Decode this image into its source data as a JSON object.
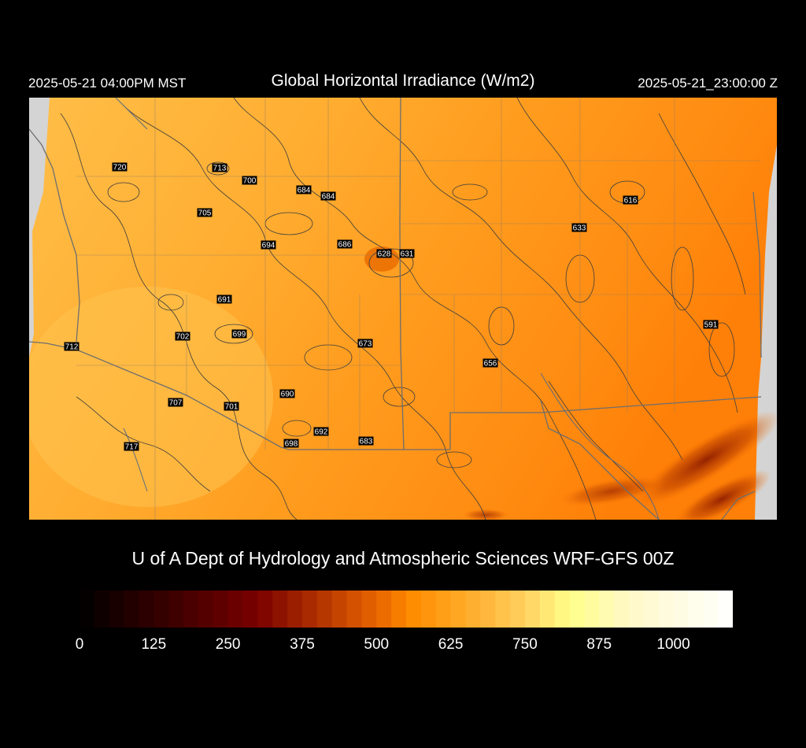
{
  "header": {
    "local_time": "2025-05-21 04:00PM MST",
    "title": "Global Horizontal Irradiance (W/m2)",
    "utc_time": "2025-05-21_23:00:00 Z"
  },
  "footer": {
    "credit": "U of A Dept of Hydrology and Atmospheric Sciences WRF-GFS 00Z"
  },
  "colorbar": {
    "min": 0,
    "max": 1100,
    "ticks": [
      "0",
      "125",
      "250",
      "375",
      "500",
      "625",
      "750",
      "875",
      "1000"
    ],
    "tick_values": [
      0,
      125,
      250,
      375,
      500,
      625,
      750,
      875,
      1000
    ],
    "stops": [
      {
        "value": 0,
        "color": "#000000"
      },
      {
        "value": 150,
        "color": "#3a0000"
      },
      {
        "value": 300,
        "color": "#7a0000"
      },
      {
        "value": 400,
        "color": "#b03000"
      },
      {
        "value": 500,
        "color": "#e86400"
      },
      {
        "value": 560,
        "color": "#ff8c00"
      },
      {
        "value": 650,
        "color": "#ffaa28"
      },
      {
        "value": 750,
        "color": "#ffd060"
      },
      {
        "value": 825,
        "color": "#ffff88"
      },
      {
        "value": 925,
        "color": "#fff8c8"
      },
      {
        "value": 1100,
        "color": "#ffffff"
      }
    ]
  },
  "colors": {
    "background": "#000000",
    "no_data": "#d4d4d4",
    "field_high": "#ffbe44",
    "field_mid": "#ffa022",
    "field_low": "#ff8a10",
    "contour": "#3c3c3c",
    "boundary": "#6e6e6e"
  },
  "stations": [
    {
      "label": "720",
      "value": 720
    },
    {
      "label": "713",
      "value": 713
    },
    {
      "label": "700",
      "value": 700
    },
    {
      "label": "684",
      "value": 684
    },
    {
      "label": "684",
      "value": 684
    },
    {
      "label": "705",
      "value": 705
    },
    {
      "label": "616",
      "value": 616
    },
    {
      "label": "633",
      "value": 633
    },
    {
      "label": "694",
      "value": 694
    },
    {
      "label": "686",
      "value": 686
    },
    {
      "label": "628",
      "value": 628
    },
    {
      "label": "631",
      "value": 631
    },
    {
      "label": "691",
      "value": 691
    },
    {
      "label": "591",
      "value": 591
    },
    {
      "label": "712",
      "value": 712
    },
    {
      "label": "702",
      "value": 702
    },
    {
      "label": "699",
      "value": 699
    },
    {
      "label": "673",
      "value": 673
    },
    {
      "label": "656",
      "value": 656
    },
    {
      "label": "690",
      "value": 690
    },
    {
      "label": "707",
      "value": 707
    },
    {
      "label": "701",
      "value": 701
    },
    {
      "label": "692",
      "value": 692
    },
    {
      "label": "683",
      "value": 683
    },
    {
      "label": "698",
      "value": 698
    },
    {
      "label": "717",
      "value": 717
    }
  ]
}
